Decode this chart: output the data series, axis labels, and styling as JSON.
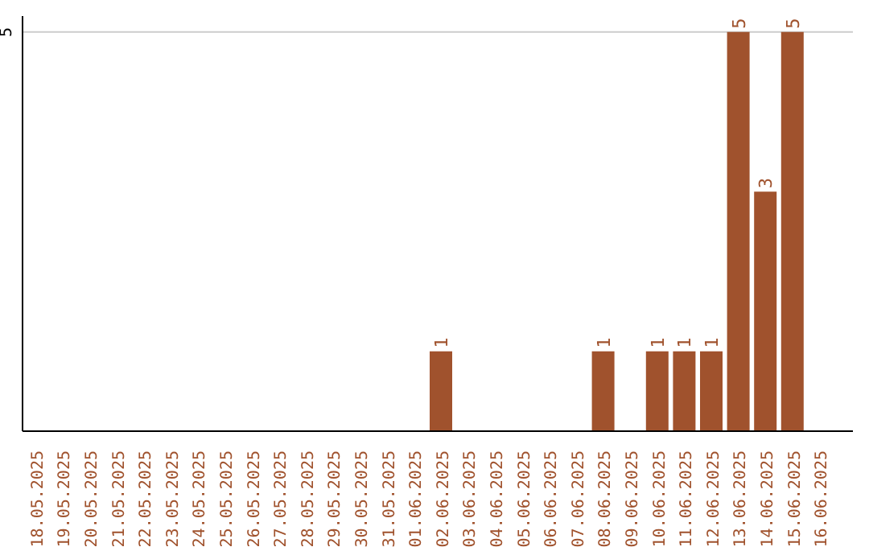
{
  "chart_data": {
    "type": "bar",
    "categories": [
      "18.05.2025",
      "19.05.2025",
      "20.05.2025",
      "21.05.2025",
      "22.05.2025",
      "23.05.2025",
      "24.05.2025",
      "25.05.2025",
      "26.05.2025",
      "27.05.2025",
      "28.05.2025",
      "29.05.2025",
      "30.05.2025",
      "31.05.2025",
      "01.06.2025",
      "02.06.2025",
      "03.06.2025",
      "04.06.2025",
      "05.06.2025",
      "06.06.2025",
      "07.06.2025",
      "08.06.2025",
      "09.06.2025",
      "10.06.2025",
      "11.06.2025",
      "12.06.2025",
      "13.06.2025",
      "14.06.2025",
      "15.06.2025",
      "16.06.2025"
    ],
    "values": [
      null,
      null,
      null,
      null,
      null,
      null,
      null,
      null,
      null,
      null,
      null,
      null,
      null,
      null,
      null,
      1,
      null,
      null,
      null,
      null,
      null,
      1,
      null,
      1,
      1,
      1,
      5,
      3,
      5,
      null
    ],
    "data_labels": true,
    "color": "#a0522d",
    "ylim": [
      0,
      5.2
    ],
    "yticks": [
      5
    ],
    "grid": "y"
  }
}
